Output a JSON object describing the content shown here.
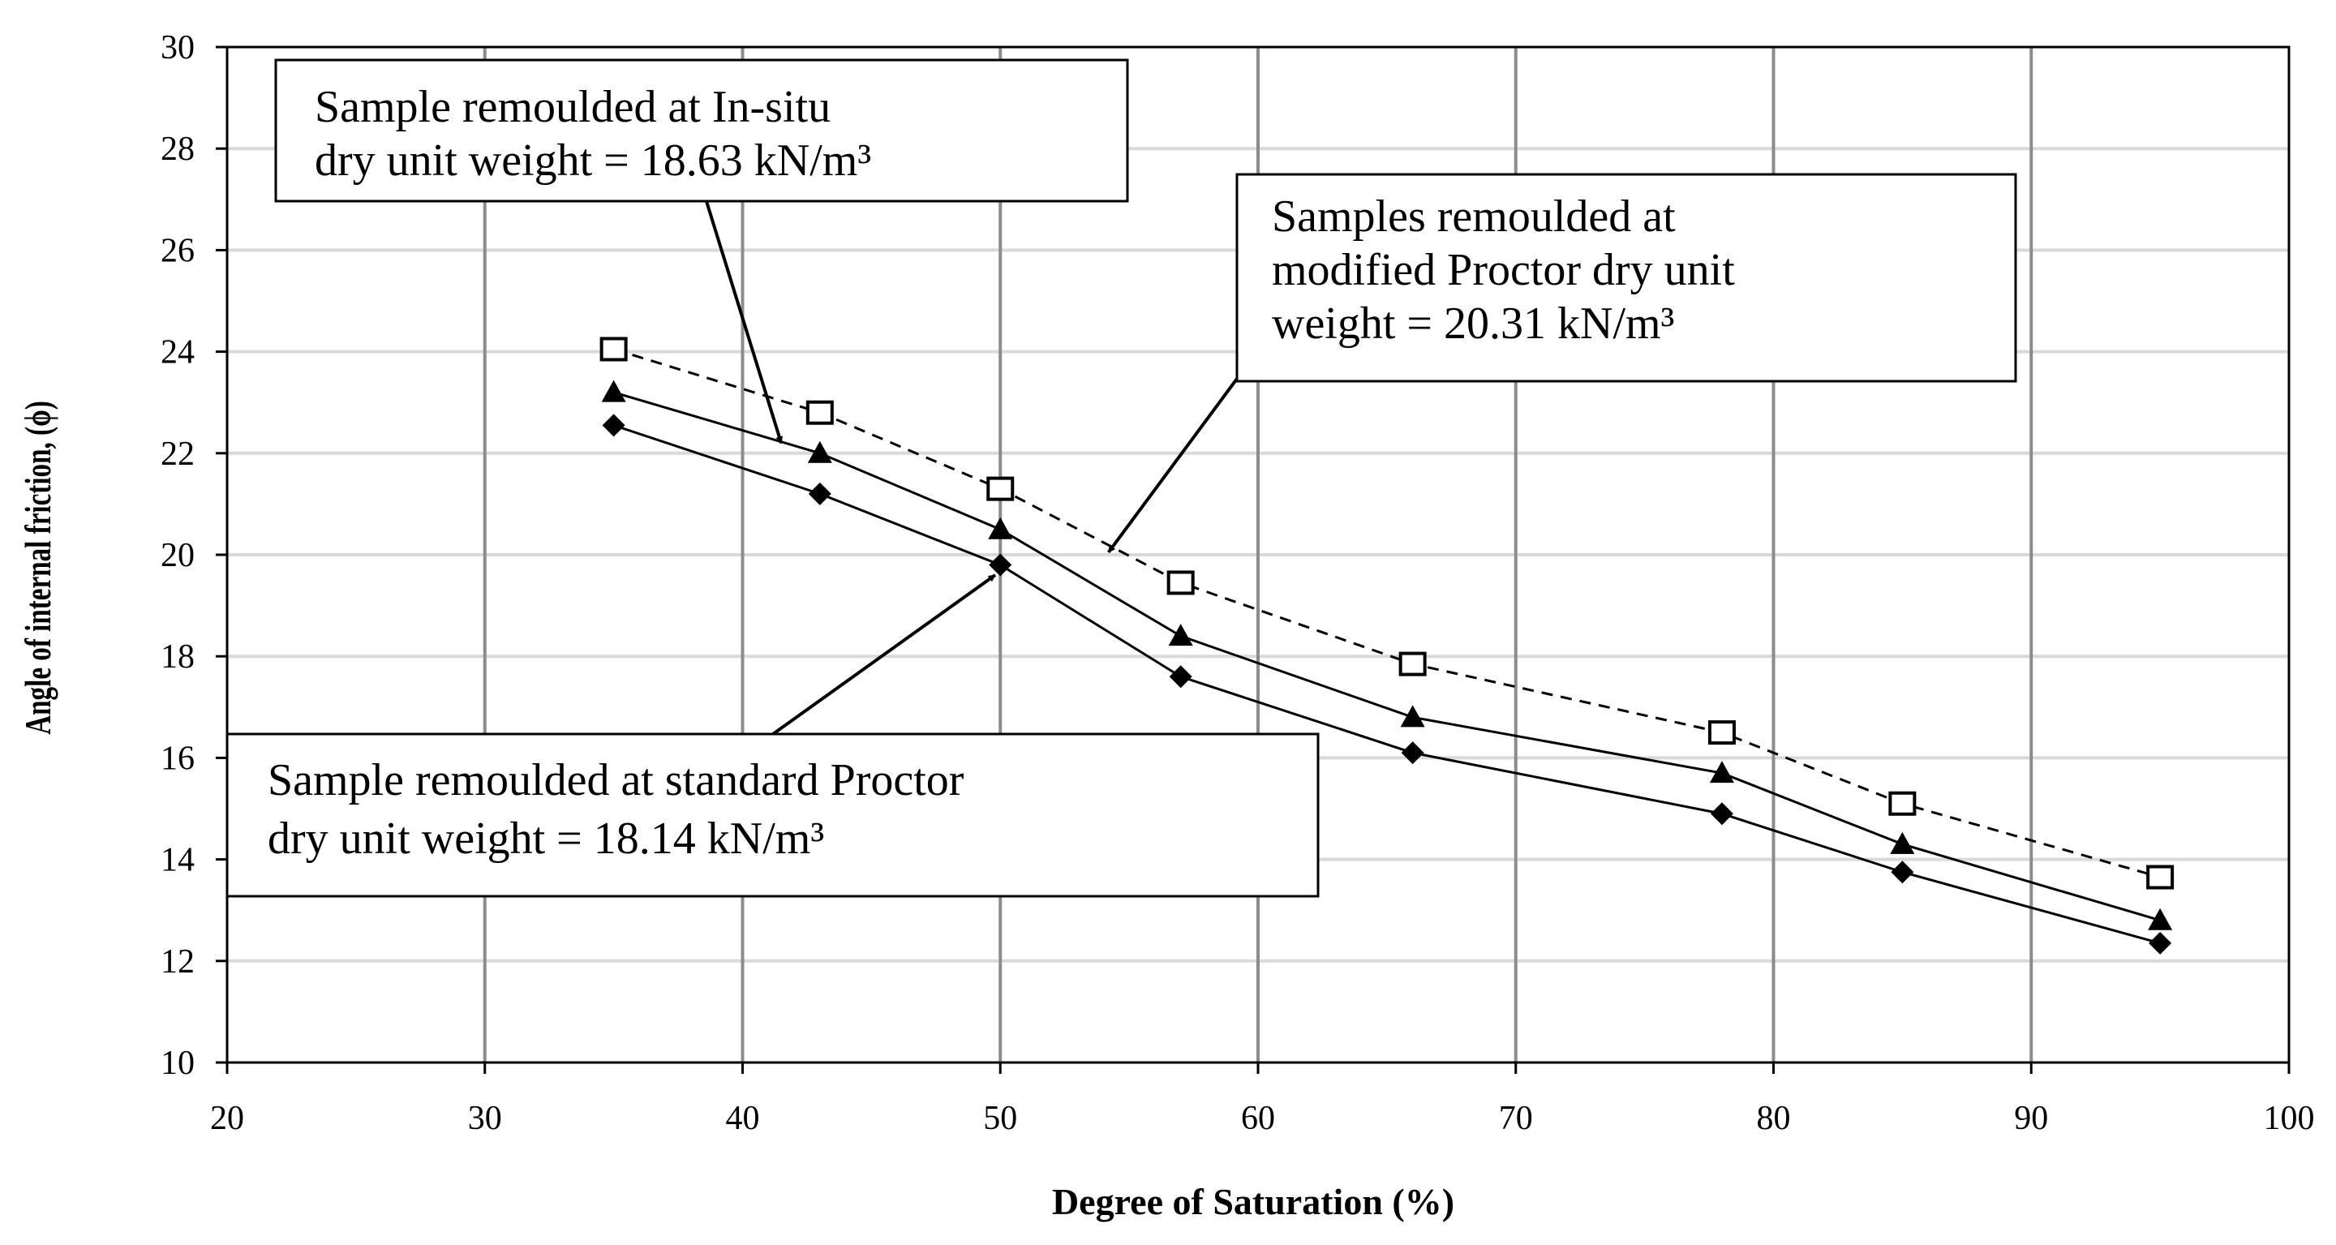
{
  "chart_data": {
    "type": "line",
    "xlabel": "Degree of Saturation (%)",
    "ylabel": "Angle of internal friction, (ϕ)",
    "xlim": [
      20,
      100
    ],
    "ylim": [
      10,
      30
    ],
    "x_ticks": [
      20,
      30,
      40,
      50,
      60,
      70,
      80,
      90,
      100
    ],
    "y_ticks": [
      10,
      12,
      14,
      16,
      18,
      20,
      22,
      24,
      26,
      28,
      30
    ],
    "grid": {
      "x": true,
      "y": true
    },
    "series": [
      {
        "name": "Sample remoulded at In-situ dry unit weight = 18.63 kN/m³",
        "marker": "triangle",
        "line": "solid",
        "x": [
          35,
          43,
          50,
          57,
          66,
          78,
          85,
          95
        ],
        "y": [
          23.2,
          22.0,
          20.5,
          18.4,
          16.8,
          15.7,
          14.3,
          12.8
        ]
      },
      {
        "name": "Samples remoulded at modified Proctor dry unit weight = 20.31 kN/m³",
        "marker": "open-square",
        "line": "dashed",
        "x": [
          35,
          43,
          50,
          57,
          66,
          78,
          85,
          95
        ],
        "y": [
          24.05,
          22.8,
          21.3,
          19.45,
          17.85,
          16.5,
          15.1,
          13.65
        ]
      },
      {
        "name": "Sample remoulded at standard Proctor dry unit weight = 18.14 kN/m³",
        "marker": "diamond",
        "line": "solid",
        "x": [
          35,
          43,
          50,
          57,
          66,
          78,
          85,
          95
        ],
        "y": [
          22.55,
          21.2,
          19.8,
          17.6,
          16.1,
          14.9,
          13.75,
          12.35
        ]
      }
    ],
    "annotations": [
      {
        "id": "insitu",
        "lines": [
          "Sample remoulded at In-situ",
          "dry unit weight = 18.63 kN/m³"
        ],
        "arrow_to": [
          41.5,
          22.2
        ]
      },
      {
        "id": "modified",
        "lines": [
          "Samples remoulded at",
          "modified Proctor  dry unit",
          "weight =  20.31 kN/m³"
        ],
        "arrow_to": [
          54.2,
          20.05
        ]
      },
      {
        "id": "standard",
        "lines": [
          "Sample remoulded at standard Proctor",
          "dry unit weight = 18.14 kN/m³"
        ],
        "arrow_to": [
          49.8,
          19.6
        ]
      }
    ]
  }
}
